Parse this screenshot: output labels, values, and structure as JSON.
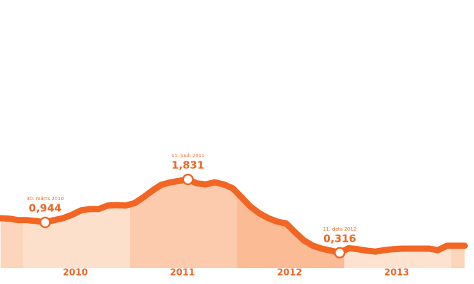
{
  "chart_data": {
    "type": "area",
    "color": "#f26522",
    "categories": [
      null,
      null,
      null,
      null,
      null,
      null,
      null,
      null,
      null,
      "2010",
      null,
      null,
      null,
      null,
      null,
      null,
      null,
      null,
      null,
      null,
      null,
      "2011",
      null,
      null,
      null,
      null,
      null,
      null,
      null,
      null,
      null,
      null,
      null,
      "2012",
      null,
      null,
      null,
      null,
      null,
      null,
      null,
      null,
      null,
      null,
      null,
      "2013",
      null,
      null,
      null,
      null,
      null,
      null,
      null
    ],
    "values": [
      1.03,
      1.02,
      0.99,
      0.99,
      0.97,
      0.944,
      0.99,
      1.03,
      1.1,
      1.19,
      1.22,
      1.22,
      1.29,
      1.3,
      1.29,
      1.34,
      1.46,
      1.6,
      1.72,
      1.77,
      1.8,
      1.831,
      1.75,
      1.73,
      1.77,
      1.73,
      1.65,
      1.46,
      1.27,
      1.13,
      1.03,
      0.96,
      0.92,
      0.74,
      0.57,
      0.46,
      0.4,
      0.36,
      0.316,
      0.41,
      0.39,
      0.36,
      0.34,
      0.37,
      0.39,
      0.4,
      0.4,
      0.4,
      0.4,
      0.37,
      0.46,
      0.46,
      0.46
    ],
    "value_labels": [
      null,
      null,
      null,
      null,
      null,
      "0,944",
      null,
      null,
      null,
      null,
      null,
      null,
      null,
      null,
      null,
      null,
      null,
      null,
      null,
      null,
      null,
      "1,831",
      null,
      null,
      null,
      null,
      null,
      null,
      null,
      null,
      null,
      null,
      null,
      null,
      null,
      null,
      null,
      null,
      "0,316",
      null,
      null,
      null,
      null,
      null,
      null,
      null,
      null,
      null,
      null,
      null,
      null,
      null,
      null
    ],
    "date_labels": [
      null,
      null,
      null,
      null,
      null,
      "30. märts 2010",
      null,
      null,
      null,
      null,
      null,
      null,
      null,
      null,
      null,
      null,
      null,
      null,
      null,
      null,
      null,
      "11. juuli 2011",
      null,
      null,
      null,
      null,
      null,
      null,
      null,
      null,
      null,
      null,
      null,
      null,
      null,
      null,
      null,
      null,
      "11. dets 2012",
      null,
      null,
      null,
      null,
      null,
      null,
      null,
      null,
      null,
      null,
      null,
      null,
      null,
      null
    ]
  }
}
